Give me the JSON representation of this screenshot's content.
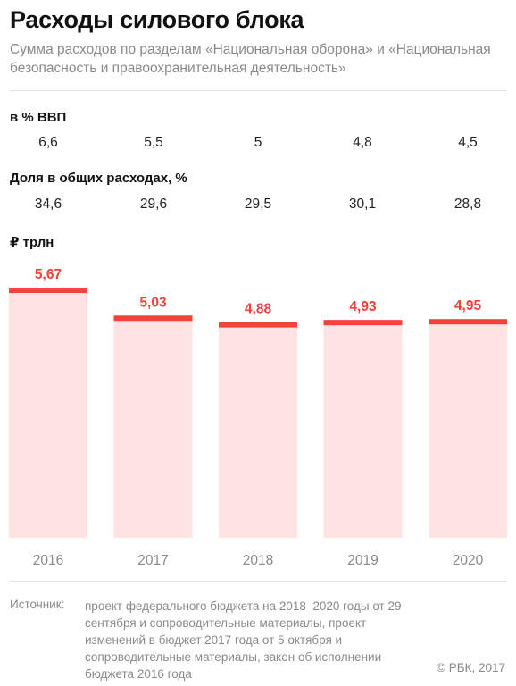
{
  "header": {
    "title": "Расходы силового блока",
    "subtitle": "Сумма расходов по разделам «Национальная оборона» и «Национальная безопасность и правоохранительная деятельность»"
  },
  "gdp_section": {
    "label": "в % ВВП",
    "values": [
      "6,6",
      "5,5",
      "5",
      "4,8",
      "4,5"
    ]
  },
  "share_section": {
    "label": "Доля в общих расходах, %",
    "values": [
      "34,6",
      "29,6",
      "29,5",
      "30,1",
      "28,8"
    ]
  },
  "chart_data": {
    "type": "bar",
    "ylabel": "₽ трлн",
    "categories": [
      "2016",
      "2017",
      "2018",
      "2019",
      "2020"
    ],
    "values": [
      5.67,
      5.03,
      4.88,
      4.93,
      4.95
    ],
    "value_labels": [
      "5,67",
      "5,03",
      "4,88",
      "4,93",
      "4,95"
    ],
    "ylim": [
      0,
      5.67
    ],
    "grid": false,
    "colors": {
      "bar_fill": "#fde3e1",
      "bar_cap": "#f2423a",
      "value_text": "#f2423a",
      "year_text": "#8a8a8a"
    }
  },
  "footer": {
    "source_label": "Источник:",
    "source_text": "проект федерального бюджета на 2018–2020 годы от 29 сентября и сопроводительные материалы, проект изменений в бюджет 2017 года от 5 октября и сопроводительные материалы, закон об исполнении бюджета 2016 года",
    "copyright": "© РБК, 2017"
  }
}
